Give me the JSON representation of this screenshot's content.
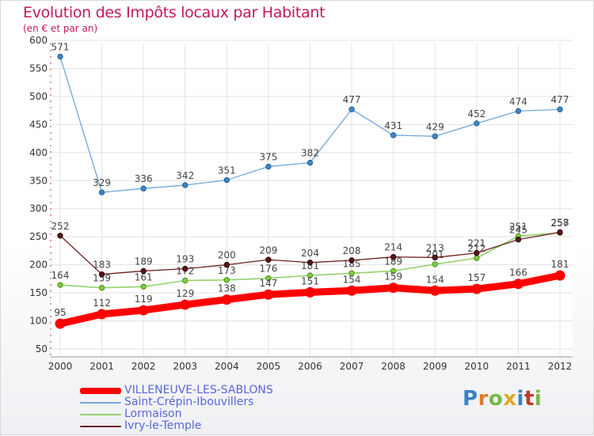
{
  "chart_data": {
    "type": "line",
    "title": "Evolution des Impôts locaux par Habitant",
    "subtitle": "(en € et par an)",
    "x": [
      "2000",
      "2001",
      "2002",
      "2003",
      "2004",
      "2005",
      "2006",
      "2007",
      "2008",
      "2009",
      "2010",
      "2011",
      "2012"
    ],
    "yticks": [
      50,
      100,
      150,
      200,
      250,
      300,
      350,
      400,
      450,
      500,
      550,
      600
    ],
    "ylim": [
      50,
      600
    ],
    "series": [
      {
        "name": "VILLENEUVE-LES-SABLONS",
        "color": "#ff0000",
        "values": [
          95,
          112,
          119,
          129,
          138,
          147,
          151,
          154,
          159,
          154,
          157,
          166,
          181
        ],
        "labels": [
          "95",
          "112",
          "119",
          "129",
          "138",
          "147",
          "151",
          "154",
          "159",
          "154",
          "157",
          "166",
          "181"
        ]
      },
      {
        "name": "Saint-Crépin-Ibouvillers",
        "color": "#6fa8dc",
        "values": [
          571,
          329,
          336,
          342,
          351,
          375,
          382,
          477,
          431,
          429,
          452,
          474,
          477
        ],
        "labels": [
          "571",
          "329",
          "336",
          "342",
          "351",
          "375",
          "382",
          "477",
          "431",
          "429",
          "452",
          "474",
          "477"
        ]
      },
      {
        "name": "Lormaison",
        "color": "#93d36b",
        "values": [
          164,
          159,
          161,
          172,
          173,
          176,
          181,
          185,
          189,
          201,
          212,
          251,
          257
        ],
        "labels": [
          "164",
          "159",
          "161",
          "172",
          "173",
          "176",
          "181",
          "185",
          "189",
          "201",
          "212",
          "251",
          "257"
        ]
      },
      {
        "name": "Ivry-le-Temple",
        "color": "#6b2020",
        "values": [
          252,
          183,
          189,
          193,
          200,
          209,
          204,
          208,
          214,
          213,
          221,
          245,
          258
        ],
        "labels": [
          "252",
          "183",
          "189",
          "193",
          "200",
          "209",
          "204",
          "208",
          "214",
          "213",
          "221",
          "245",
          "258"
        ]
      }
    ]
  },
  "legend": {
    "s0": "VILLENEUVE-LES-SABLONS",
    "s1": "Saint-Crépin-Ibouvillers",
    "s2": "Lormaison",
    "s3": "Ivry-le-Temple"
  },
  "logo": {
    "text": "Proxiti"
  }
}
